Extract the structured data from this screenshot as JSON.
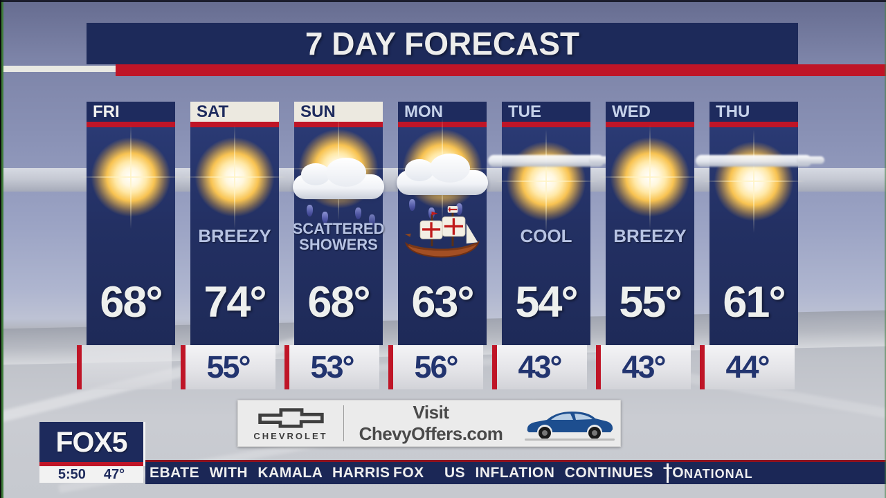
{
  "title": "7 DAY FORECAST",
  "days": [
    {
      "label": "FRI",
      "header": "current",
      "icon": "sunny",
      "condition": "",
      "high": "68°",
      "low": ""
    },
    {
      "label": "SAT",
      "header": "weekend",
      "icon": "sunny",
      "condition": "BREEZY",
      "high": "74°",
      "low": "55°"
    },
    {
      "label": "SUN",
      "header": "weekend",
      "icon": "showers",
      "condition": "SCATTERED SHOWERS",
      "high": "68°",
      "low": "53°"
    },
    {
      "label": "MON",
      "header": "weekday",
      "icon": "showers-ship",
      "condition": "",
      "high": "63°",
      "low": "56°"
    },
    {
      "label": "TUE",
      "header": "weekday",
      "icon": "partly",
      "condition": "COOL",
      "high": "54°",
      "low": "43°"
    },
    {
      "label": "WED",
      "header": "weekday",
      "icon": "sunny",
      "condition": "BREEZY",
      "high": "55°",
      "low": "43°"
    },
    {
      "label": "THU",
      "header": "weekday",
      "icon": "partly",
      "condition": "",
      "high": "61°",
      "low": "44°"
    }
  ],
  "ad": {
    "brand": "CHEVROLET",
    "message": "Visit ChevyOffers.com"
  },
  "station": {
    "logo": "FOX5",
    "time": "5:50",
    "temp": "47°"
  },
  "ticker": {
    "item1": "EBATE WITH KAMALA HARRIS",
    "network": "FOX",
    "item2": "US INFLATION CONTINUES TO",
    "category": "NATIONAL"
  },
  "colors": {
    "navy": "#1d2a5c",
    "red": "#bf1527",
    "header_light": "#ece9e0",
    "condition_text": "#b7c3e3",
    "low_text": "#22346f"
  }
}
